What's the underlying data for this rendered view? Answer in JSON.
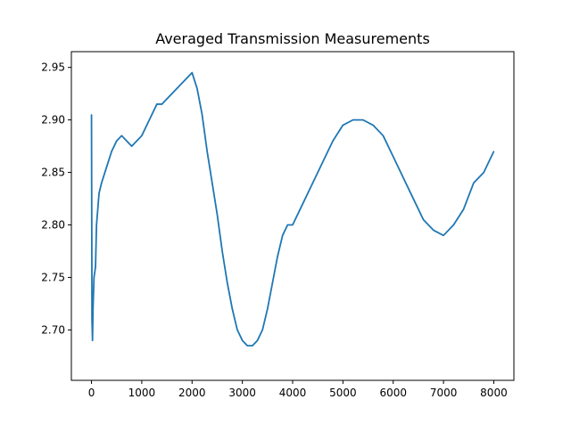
{
  "chart_data": {
    "type": "line",
    "title": "Averaged Transmission Measurements",
    "xlabel": "",
    "ylabel": "",
    "xlim": [
      -400,
      8400
    ],
    "ylim": [
      2.652,
      2.965
    ],
    "xticks": [
      0,
      1000,
      2000,
      3000,
      4000,
      5000,
      6000,
      7000,
      8000
    ],
    "yticks": [
      2.7,
      2.75,
      2.8,
      2.85,
      2.9,
      2.95
    ],
    "xtick_labels": [
      "0",
      "1000",
      "2000",
      "3000",
      "4000",
      "5000",
      "6000",
      "7000",
      "8000"
    ],
    "ytick_labels": [
      "2.70",
      "2.75",
      "2.80",
      "2.85",
      "2.90",
      "2.95"
    ],
    "grid": false,
    "line_color": "#1f77b4",
    "series": [
      {
        "x": [
          0,
          10,
          20,
          30,
          50,
          80,
          100,
          150,
          200,
          300,
          400,
          500,
          600,
          700,
          800,
          900,
          1000,
          1100,
          1200,
          1300,
          1400,
          1500,
          1600,
          1700,
          1800,
          1900,
          2000,
          2100,
          2200,
          2300,
          2400,
          2500,
          2600,
          2700,
          2800,
          2900,
          3000,
          3100,
          3200,
          3300,
          3400,
          3500,
          3600,
          3700,
          3800,
          3900,
          4000,
          4200,
          4400,
          4600,
          4800,
          5000,
          5200,
          5400,
          5600,
          5800,
          6000,
          6200,
          6400,
          6600,
          6800,
          7000,
          7200,
          7400,
          7600,
          7800,
          8000
        ],
        "y": [
          2.905,
          2.71,
          2.69,
          2.72,
          2.75,
          2.76,
          2.8,
          2.83,
          2.84,
          2.855,
          2.87,
          2.88,
          2.885,
          2.88,
          2.875,
          2.88,
          2.885,
          2.895,
          2.905,
          2.915,
          2.915,
          2.92,
          2.925,
          2.93,
          2.935,
          2.94,
          2.945,
          2.93,
          2.905,
          2.87,
          2.84,
          2.81,
          2.775,
          2.745,
          2.72,
          2.7,
          2.69,
          2.685,
          2.685,
          2.69,
          2.7,
          2.72,
          2.745,
          2.77,
          2.79,
          2.8,
          2.8,
          2.82,
          2.84,
          2.86,
          2.88,
          2.895,
          2.9,
          2.9,
          2.895,
          2.885,
          2.865,
          2.845,
          2.825,
          2.805,
          2.795,
          2.79,
          2.8,
          2.815,
          2.84,
          2.85,
          2.87
        ]
      }
    ]
  }
}
